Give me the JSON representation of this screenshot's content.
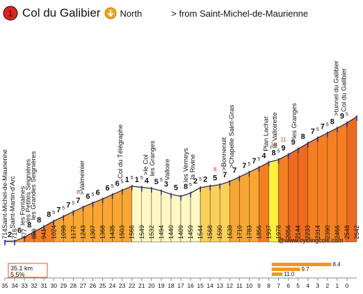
{
  "header": {
    "number": "1",
    "title": "Col du Galibier",
    "direction_icon": "down-arrow-circle-icon",
    "direction": "North",
    "from_label": "> from Saint-Michel-de-Maurienne",
    "number_badge_color": "#e0221b",
    "direction_icon_color": "#f3a21b"
  },
  "credit": "@www.cyclingcols.com",
  "chart_data": {
    "type": "area",
    "title": "Col du Galibier",
    "km_marks": [
      "35",
      "34",
      "33",
      "32",
      "31",
      "30",
      "29",
      "28",
      "27",
      "26",
      "25",
      "24",
      "23",
      "22",
      "21",
      "20",
      "19",
      "18",
      "17",
      "16",
      "15",
      "14",
      "13",
      "12",
      "11",
      "10",
      "9",
      "8",
      "7",
      "6",
      "5",
      "4",
      "3",
      "2",
      "1",
      "0"
    ],
    "altitudes": [
      714,
      716,
      777,
      859,
      941,
      1024,
      1098,
      1172,
      1243,
      1307,
      1368,
      1435,
      1503,
      1566,
      1549,
      1532,
      1494,
      1440,
      1409,
      1459,
      1544,
      1568,
      1590,
      1639,
      1710,
      1783,
      1856,
      1937,
      1978,
      2056,
      2144,
      2233,
      2314,
      2390,
      2466,
      2548,
      2642
    ],
    "gradients": [
      "2",
      "6",
      "8",
      "8",
      "8",
      "7",
      "7",
      "7",
      "6",
      "6",
      "6",
      "6",
      "1",
      "1",
      "4",
      "5",
      "3",
      "5",
      "8",
      "2",
      "2",
      "5",
      "7",
      "7",
      "7",
      "7",
      "4",
      "8",
      "9",
      "9",
      "8",
      "7",
      "7",
      "8",
      "9"
    ],
    "gradients_sup": [
      "",
      "",
      "",
      "",
      "5",
      "5",
      "5",
      "",
      "5",
      "",
      "5",
      "5",
      "5",
      "5",
      "",
      "5",
      "",
      "",
      "5",
      "5",
      "",
      "",
      "",
      "",
      "5",
      "5",
      "",
      "5",
      "",
      "",
      "",
      "5",
      "5",
      "",
      "5"
    ],
    "highlight_gradients": [
      {
        "index": 7,
        "value": "8"
      },
      {
        "index": 21,
        "value": "8"
      },
      {
        "index": 27,
        "value": "10"
      },
      {
        "index": 28,
        "value": "11"
      }
    ],
    "places": [
      {
        "name": "Saint-Michel-de-Maurienne",
        "km": 35
      },
      {
        "name": "Saint-Martin-d'Arc",
        "km": 34.2
      },
      {
        "name": "les Fontaines",
        "km": 33.2
      },
      {
        "name": "les Petites Seignières",
        "km": 32.6
      },
      {
        "name": "les Grandes Seignières",
        "km": 32.1
      },
      {
        "name": ">Valmeinier",
        "km": 27.1
      },
      {
        "name": "Col du Télégraphe",
        "km": 23.2
      },
      {
        "name": ">le Col",
        "km": 20.6
      },
      {
        "name": "les Granges",
        "km": 19.9
      },
      {
        "name": "Valloire",
        "km": 18.4
      },
      {
        "name": "les Verneys",
        "km": 16.5
      },
      {
        "name": "la Rivine",
        "km": 15.8
      },
      {
        "name": ">Bonnenuit",
        "km": 12.6
      },
      {
        "name": ">Chapelle Saint-Gras",
        "km": 11.8
      },
      {
        "name": "Plan Lachat",
        "km": 8.3
      },
      {
        "name": "~",
        "km": 7.8
      },
      {
        "name": "la Valloirette",
        "km": 7.4
      },
      {
        "name": "les Granges",
        "km": 5.4
      },
      {
        "name": ">tunnel du Galibier",
        "km": 1.1
      },
      {
        "name": "Col du Galibier",
        "km": 0.3
      }
    ],
    "summary": {
      "distance": "35.1 km",
      "avg_gradient": "5.5%"
    },
    "extra_labels": [
      {
        "text": "8.4",
        "value": 8.4
      },
      {
        "text": "9.7",
        "value": 9.7
      },
      {
        "text": "11.0",
        "value": 11.0
      }
    ],
    "colors": {
      "pale": "#fff8c2",
      "yellow": "#fff03b",
      "light_orange": "#fbd057",
      "orange": "#f9a732",
      "dark_orange": "#f57f20",
      "red_orange": "#ee6a1d",
      "blue_tick": "#1020d8",
      "bar_orange": "#f4961c",
      "summary_box": "#e85010",
      "highlight_text": "#e03020"
    }
  }
}
